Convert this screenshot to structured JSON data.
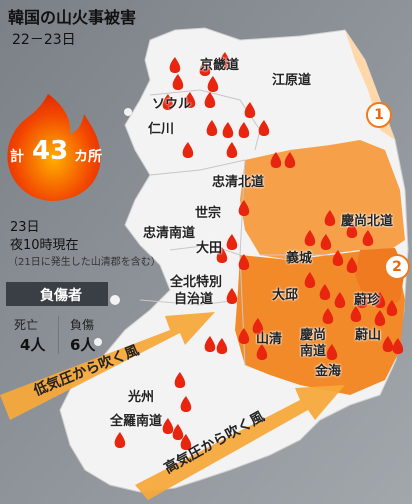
{
  "title": "韓国の山火事被害",
  "date_range": "22－23日",
  "fire_total": {
    "prefix": "計",
    "number": "43",
    "unit": "カ所"
  },
  "report": {
    "date": "23日",
    "time": "夜10時現在",
    "note": "（21日に発生した山清郡を含む）"
  },
  "casualties": {
    "title": "負傷者",
    "deaths_label": "死亡",
    "deaths_value": "4人",
    "injured_label": "負傷",
    "injured_value": "6人"
  },
  "regions": [
    "京畿道",
    "江原道",
    "ソウル",
    "仁川",
    "忠清北道",
    "世宗",
    "忠清南道",
    "大田",
    "全北特別",
    "自治道",
    "慶尚北道",
    "義城",
    "大邱",
    "蔚珍",
    "山清",
    "慶尚",
    "南道",
    "蔚山",
    "金海",
    "光州",
    "全羅南道"
  ],
  "markers": [
    "1",
    "2"
  ],
  "wind": {
    "arrow1": "低気圧から吹く風",
    "arrow2": "高気圧から吹く風"
  },
  "colors": {
    "flame": "#f24500",
    "orange_light": "#f6a04a",
    "orange_dark": "#f28a2a",
    "arrow": "#f7a93b"
  }
}
